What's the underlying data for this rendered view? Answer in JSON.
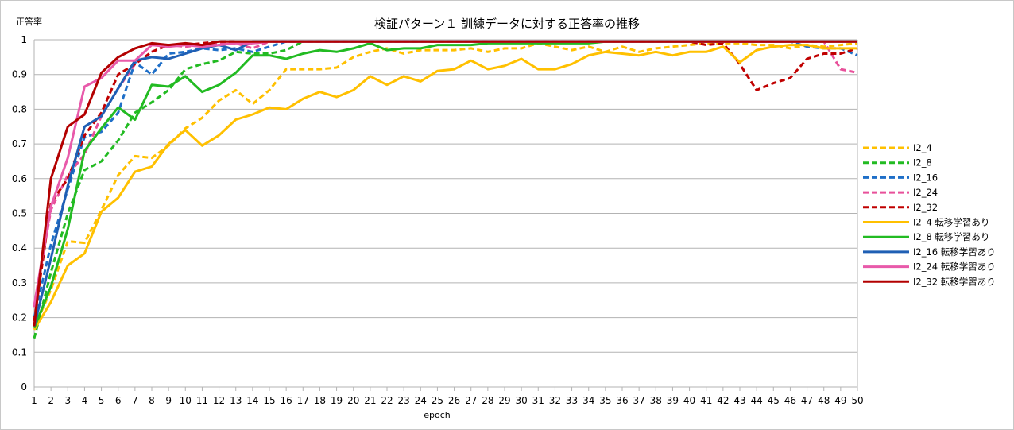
{
  "chart_data": {
    "type": "line",
    "title": "検証パターン１ 訓練データに対する正答率の推移",
    "xlabel": "epoch",
    "ylabel": "正答率",
    "ylim": [
      0,
      1
    ],
    "yticks": [
      "0",
      "0.1",
      "0.2",
      "0.3",
      "0.4",
      "0.5",
      "0.6",
      "0.7",
      "0.8",
      "0.9",
      "1"
    ],
    "x": [
      1,
      2,
      3,
      4,
      5,
      6,
      7,
      8,
      9,
      10,
      11,
      12,
      13,
      14,
      15,
      16,
      17,
      18,
      19,
      20,
      21,
      22,
      23,
      24,
      25,
      26,
      27,
      28,
      29,
      30,
      31,
      32,
      33,
      34,
      35,
      36,
      37,
      38,
      39,
      40,
      41,
      42,
      43,
      44,
      45,
      46,
      47,
      48,
      49,
      50
    ],
    "grid": "horizontal",
    "legend_position": "right",
    "series": [
      {
        "name": "I2_4",
        "color": "#FFC000",
        "style": "dashed",
        "values": [
          0.17,
          0.28,
          0.42,
          0.415,
          0.51,
          0.61,
          0.665,
          0.66,
          0.695,
          0.745,
          0.775,
          0.825,
          0.855,
          0.815,
          0.855,
          0.915,
          0.915,
          0.915,
          0.92,
          0.95,
          0.965,
          0.975,
          0.96,
          0.97,
          0.97,
          0.97,
          0.975,
          0.965,
          0.975,
          0.975,
          0.99,
          0.98,
          0.97,
          0.98,
          0.965,
          0.98,
          0.965,
          0.975,
          0.98,
          0.985,
          0.99,
          0.99,
          0.99,
          0.985,
          0.985,
          0.975,
          0.985,
          0.98,
          0.985,
          0.99
        ]
      },
      {
        "name": "I2_8",
        "color": "#22BB22",
        "style": "dashed",
        "values": [
          0.14,
          0.33,
          0.5,
          0.625,
          0.65,
          0.71,
          0.79,
          0.82,
          0.855,
          0.915,
          0.93,
          0.94,
          0.965,
          0.96,
          0.96,
          0.97,
          0.995,
          0.995,
          0.995,
          0.995,
          0.995,
          0.995,
          0.995,
          0.995,
          0.995,
          0.995,
          0.995,
          0.995,
          0.995,
          0.995,
          0.995,
          0.995,
          0.995,
          0.995,
          0.995,
          0.995,
          0.995,
          0.995,
          0.995,
          0.995,
          0.995,
          0.995,
          0.995,
          0.995,
          0.995,
          0.995,
          0.995,
          0.995,
          0.995,
          0.995
        ]
      },
      {
        "name": "I2_16",
        "color": "#1F6FC8",
        "style": "dashed",
        "values": [
          0.2,
          0.41,
          0.57,
          0.72,
          0.735,
          0.79,
          0.935,
          0.9,
          0.96,
          0.965,
          0.975,
          0.97,
          0.975,
          0.965,
          0.98,
          0.995,
          0.995,
          0.995,
          0.995,
          0.995,
          0.995,
          0.995,
          0.995,
          0.995,
          0.995,
          0.995,
          0.995,
          0.995,
          0.995,
          0.995,
          0.995,
          0.995,
          0.995,
          0.995,
          0.995,
          0.995,
          0.995,
          0.995,
          0.995,
          0.995,
          0.995,
          0.995,
          0.995,
          0.995,
          0.995,
          0.995,
          0.98,
          0.975,
          0.975,
          0.955
        ]
      },
      {
        "name": "I2_24",
        "color": "#E8509A",
        "style": "dashed",
        "values": [
          0.23,
          0.51,
          0.61,
          0.67,
          0.78,
          0.86,
          0.93,
          0.965,
          0.985,
          0.98,
          0.985,
          0.99,
          0.99,
          0.975,
          0.995,
          0.995,
          0.995,
          0.995,
          0.995,
          0.995,
          0.995,
          0.995,
          0.995,
          0.995,
          0.995,
          0.995,
          0.995,
          0.995,
          0.995,
          0.995,
          0.995,
          0.995,
          0.995,
          0.995,
          0.995,
          0.995,
          0.995,
          0.995,
          0.995,
          0.995,
          0.995,
          0.995,
          0.995,
          0.995,
          0.995,
          0.995,
          0.995,
          0.995,
          0.915,
          0.905
        ]
      },
      {
        "name": "I2_32",
        "color": "#C00000",
        "style": "dashed",
        "values": [
          0.19,
          0.53,
          0.6,
          0.725,
          0.79,
          0.9,
          0.93,
          0.965,
          0.985,
          0.985,
          0.99,
          0.995,
          0.995,
          0.99,
          0.995,
          0.995,
          0.995,
          0.995,
          0.995,
          0.995,
          0.995,
          0.995,
          0.995,
          0.995,
          0.995,
          0.995,
          0.995,
          0.995,
          0.995,
          0.995,
          0.995,
          0.995,
          0.995,
          0.995,
          0.995,
          0.995,
          0.995,
          0.995,
          0.995,
          0.995,
          0.985,
          0.99,
          0.93,
          0.855,
          0.875,
          0.89,
          0.945,
          0.96,
          0.96,
          0.975
        ]
      },
      {
        "name": "I2_4 転移学習あり",
        "color": "#FFC000",
        "style": "solid",
        "values": [
          0.165,
          0.245,
          0.35,
          0.385,
          0.505,
          0.545,
          0.62,
          0.635,
          0.7,
          0.74,
          0.695,
          0.725,
          0.77,
          0.785,
          0.805,
          0.8,
          0.83,
          0.85,
          0.835,
          0.855,
          0.895,
          0.87,
          0.895,
          0.88,
          0.91,
          0.915,
          0.94,
          0.915,
          0.925,
          0.945,
          0.915,
          0.915,
          0.93,
          0.955,
          0.965,
          0.96,
          0.955,
          0.965,
          0.955,
          0.965,
          0.965,
          0.98,
          0.935,
          0.97,
          0.98,
          0.985,
          0.985,
          0.975,
          0.975,
          0.975
        ]
      },
      {
        "name": "I2_8 転移学習あり",
        "color": "#22BB22",
        "style": "solid",
        "values": [
          0.17,
          0.29,
          0.455,
          0.68,
          0.745,
          0.805,
          0.77,
          0.87,
          0.865,
          0.895,
          0.85,
          0.87,
          0.905,
          0.955,
          0.955,
          0.945,
          0.96,
          0.97,
          0.965,
          0.975,
          0.99,
          0.97,
          0.975,
          0.975,
          0.985,
          0.985,
          0.985,
          0.99,
          0.99,
          0.99,
          0.99,
          0.99,
          0.99,
          0.99,
          0.995,
          0.995,
          0.995,
          0.995,
          0.995,
          0.995,
          0.995,
          0.995,
          0.995,
          0.995,
          0.995,
          0.995,
          0.995,
          0.995,
          0.995,
          0.995
        ]
      },
      {
        "name": "I2_16 転移学習あり",
        "color": "#1F5FB4",
        "style": "solid",
        "values": [
          0.175,
          0.37,
          0.58,
          0.75,
          0.78,
          0.86,
          0.94,
          0.95,
          0.945,
          0.96,
          0.975,
          0.985,
          0.97,
          0.995,
          0.995,
          0.995,
          0.995,
          0.995,
          0.995,
          0.995,
          0.995,
          0.995,
          0.995,
          0.995,
          0.995,
          0.995,
          0.995,
          0.995,
          0.995,
          0.995,
          0.995,
          0.995,
          0.995,
          0.995,
          0.995,
          0.995,
          0.995,
          0.995,
          0.995,
          0.995,
          0.995,
          0.995,
          0.995,
          0.995,
          0.995,
          0.995,
          0.995,
          0.995,
          0.995,
          0.995
        ]
      },
      {
        "name": "I2_24 転移学習あり",
        "color": "#E85AAA",
        "style": "solid",
        "values": [
          0.235,
          0.52,
          0.66,
          0.865,
          0.89,
          0.94,
          0.94,
          0.985,
          0.98,
          0.985,
          0.98,
          0.985,
          0.99,
          0.99,
          0.995,
          0.995,
          0.995,
          0.995,
          0.995,
          0.995,
          0.995,
          0.995,
          0.995,
          0.995,
          0.995,
          0.995,
          0.995,
          0.995,
          0.995,
          0.995,
          0.995,
          0.995,
          0.995,
          0.995,
          0.995,
          0.995,
          0.995,
          0.995,
          0.995,
          0.995,
          0.995,
          0.995,
          0.995,
          0.995,
          0.995,
          0.995,
          0.995,
          0.995,
          0.995,
          0.995
        ]
      },
      {
        "name": "I2_32 転移学習あり",
        "color": "#B30000",
        "style": "solid",
        "values": [
          0.175,
          0.6,
          0.75,
          0.785,
          0.905,
          0.95,
          0.975,
          0.99,
          0.985,
          0.99,
          0.985,
          0.995,
          0.995,
          0.995,
          0.995,
          0.995,
          0.995,
          0.995,
          0.995,
          0.995,
          0.995,
          0.995,
          0.995,
          0.995,
          0.995,
          0.995,
          0.995,
          0.995,
          0.995,
          0.995,
          0.995,
          0.995,
          0.995,
          0.995,
          0.995,
          0.995,
          0.995,
          0.995,
          0.995,
          0.995,
          0.995,
          0.995,
          0.995,
          0.995,
          0.995,
          0.995,
          0.995,
          0.995,
          0.995,
          0.995
        ]
      }
    ]
  }
}
